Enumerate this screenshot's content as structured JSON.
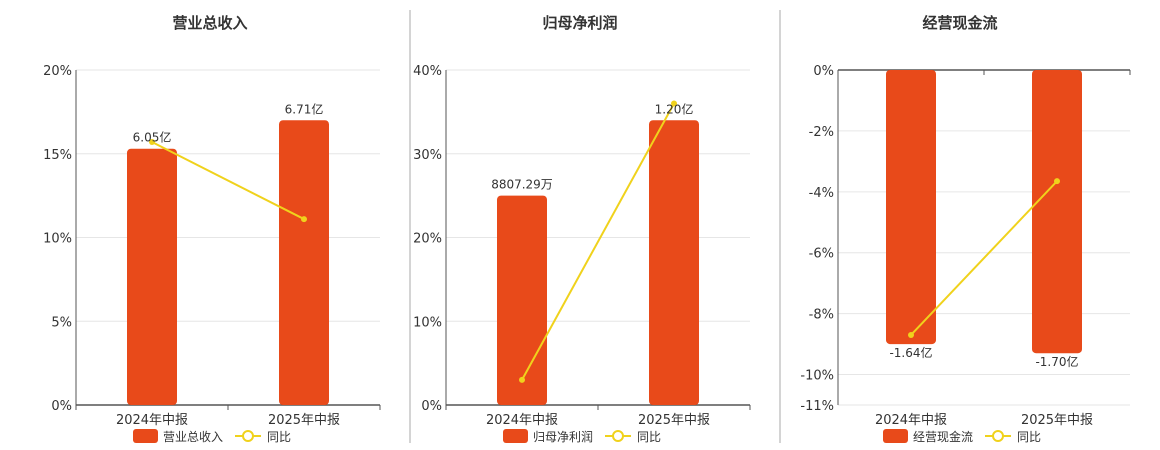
{
  "colors": {
    "bar": "#E84A1A",
    "line": "#F0D21C",
    "grid": "#E6E6E6",
    "axis": "#555555",
    "divider": "#AAAAAA"
  },
  "chart_data": [
    {
      "type": "bar",
      "title": "营业总收入",
      "categories": [
        "2024年中报",
        "2025年中报"
      ],
      "series": [
        {
          "name": "营业总收入",
          "type": "bar",
          "values": [
            15.3,
            17.0
          ],
          "labels": [
            "6.05亿",
            "6.71亿"
          ]
        },
        {
          "name": "同比",
          "type": "line",
          "values": [
            15.7,
            11.1
          ]
        }
      ],
      "yticks": [
        "0%",
        "5%",
        "10%",
        "15%",
        "20%"
      ],
      "ylim": [
        0,
        20
      ],
      "grid": true,
      "legend": "bottom"
    },
    {
      "type": "bar",
      "title": "归母净利润",
      "categories": [
        "2024年中报",
        "2025年中报"
      ],
      "series": [
        {
          "name": "归母净利润",
          "type": "bar",
          "values": [
            25.0,
            34.0
          ],
          "labels": [
            "8807.29万",
            "1.20亿"
          ]
        },
        {
          "name": "同比",
          "type": "line",
          "values": [
            3.0,
            36.0
          ]
        }
      ],
      "yticks": [
        "0%",
        "10%",
        "20%",
        "30%",
        "40%"
      ],
      "ylim": [
        0,
        40
      ],
      "grid": true,
      "legend": "bottom"
    },
    {
      "type": "bar",
      "title": "经营现金流",
      "categories": [
        "2024年中报",
        "2025年中报"
      ],
      "series": [
        {
          "name": "经营现金流",
          "type": "bar",
          "values": [
            -9.0,
            -9.3
          ],
          "labels": [
            "-1.64亿",
            "-1.70亿"
          ]
        },
        {
          "name": "同比",
          "type": "line",
          "values": [
            -8.7,
            -3.65
          ]
        }
      ],
      "yticks": [
        "0%",
        "-2%",
        "-4%",
        "-6%",
        "-8%",
        "-10%",
        "-11%"
      ],
      "ytick_values": [
        0,
        -2,
        -4,
        -6,
        -8,
        -10,
        -11
      ],
      "ylim": [
        -11,
        0
      ],
      "grid": true,
      "legend": "bottom"
    }
  ]
}
